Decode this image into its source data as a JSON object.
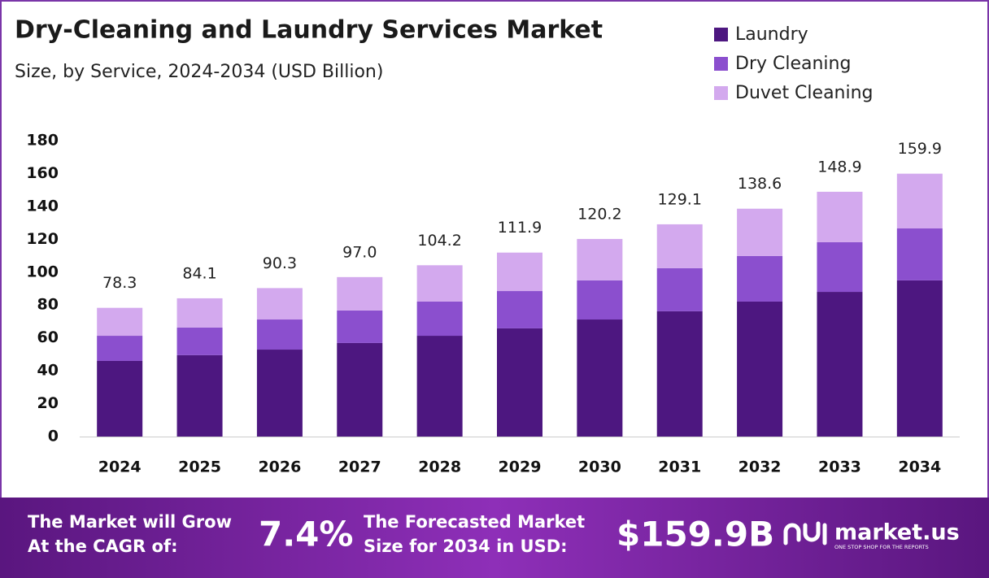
{
  "chart_data": {
    "type": "stacked_bar",
    "title": "Dry-Cleaning and Laundry Services Market",
    "subtitle": "Size, by Service, 2024-2034 (USD Billion)",
    "categories": [
      "2024",
      "2025",
      "2026",
      "2027",
      "2028",
      "2029",
      "2030",
      "2031",
      "2032",
      "2033",
      "2034"
    ],
    "series": [
      {
        "name": "Laundry",
        "color": "#4d1780",
        "values": [
          46.0,
          49.5,
          52.9,
          56.9,
          61.3,
          65.8,
          71.2,
          76.2,
          82.1,
          88.0,
          95.0
        ]
      },
      {
        "name": "Dry Cleaning",
        "color": "#8b4fce",
        "values": [
          15.3,
          16.8,
          18.3,
          19.8,
          20.8,
          22.7,
          23.8,
          26.2,
          27.7,
          30.2,
          31.6
        ]
      },
      {
        "name": "Duvet Cleaning",
        "color": "#d3a9ee",
        "values": [
          17.0,
          17.8,
          19.1,
          20.3,
          22.1,
          23.4,
          25.2,
          26.7,
          28.8,
          30.7,
          33.3
        ]
      }
    ],
    "totals": [
      78.3,
      84.1,
      90.3,
      97,
      104.2,
      111.9,
      120.2,
      129.1,
      138.6,
      148.9,
      159.9
    ],
    "total_labels": [
      "78.3",
      "84.1",
      "90.3",
      "97.0",
      "104.2",
      "111.9",
      "120.2",
      "129.1",
      "138.6",
      "148.9",
      "159.9"
    ],
    "ylim": [
      0,
      180
    ],
    "yticks": [
      0,
      20,
      40,
      60,
      80,
      100,
      120,
      140,
      160,
      180
    ],
    "grid": false,
    "legend": "top-right"
  },
  "footer": {
    "cagr_text": [
      "The Market will Grow",
      "At the CAGR of:"
    ],
    "cagr": "7.4%",
    "forecast_text": [
      "The Forecasted Market",
      "Size for 2034 in USD:"
    ],
    "forecast": "$159.9B",
    "brand": "market.us",
    "tagline": "ONE STOP SHOP FOR THE REPORTS"
  }
}
